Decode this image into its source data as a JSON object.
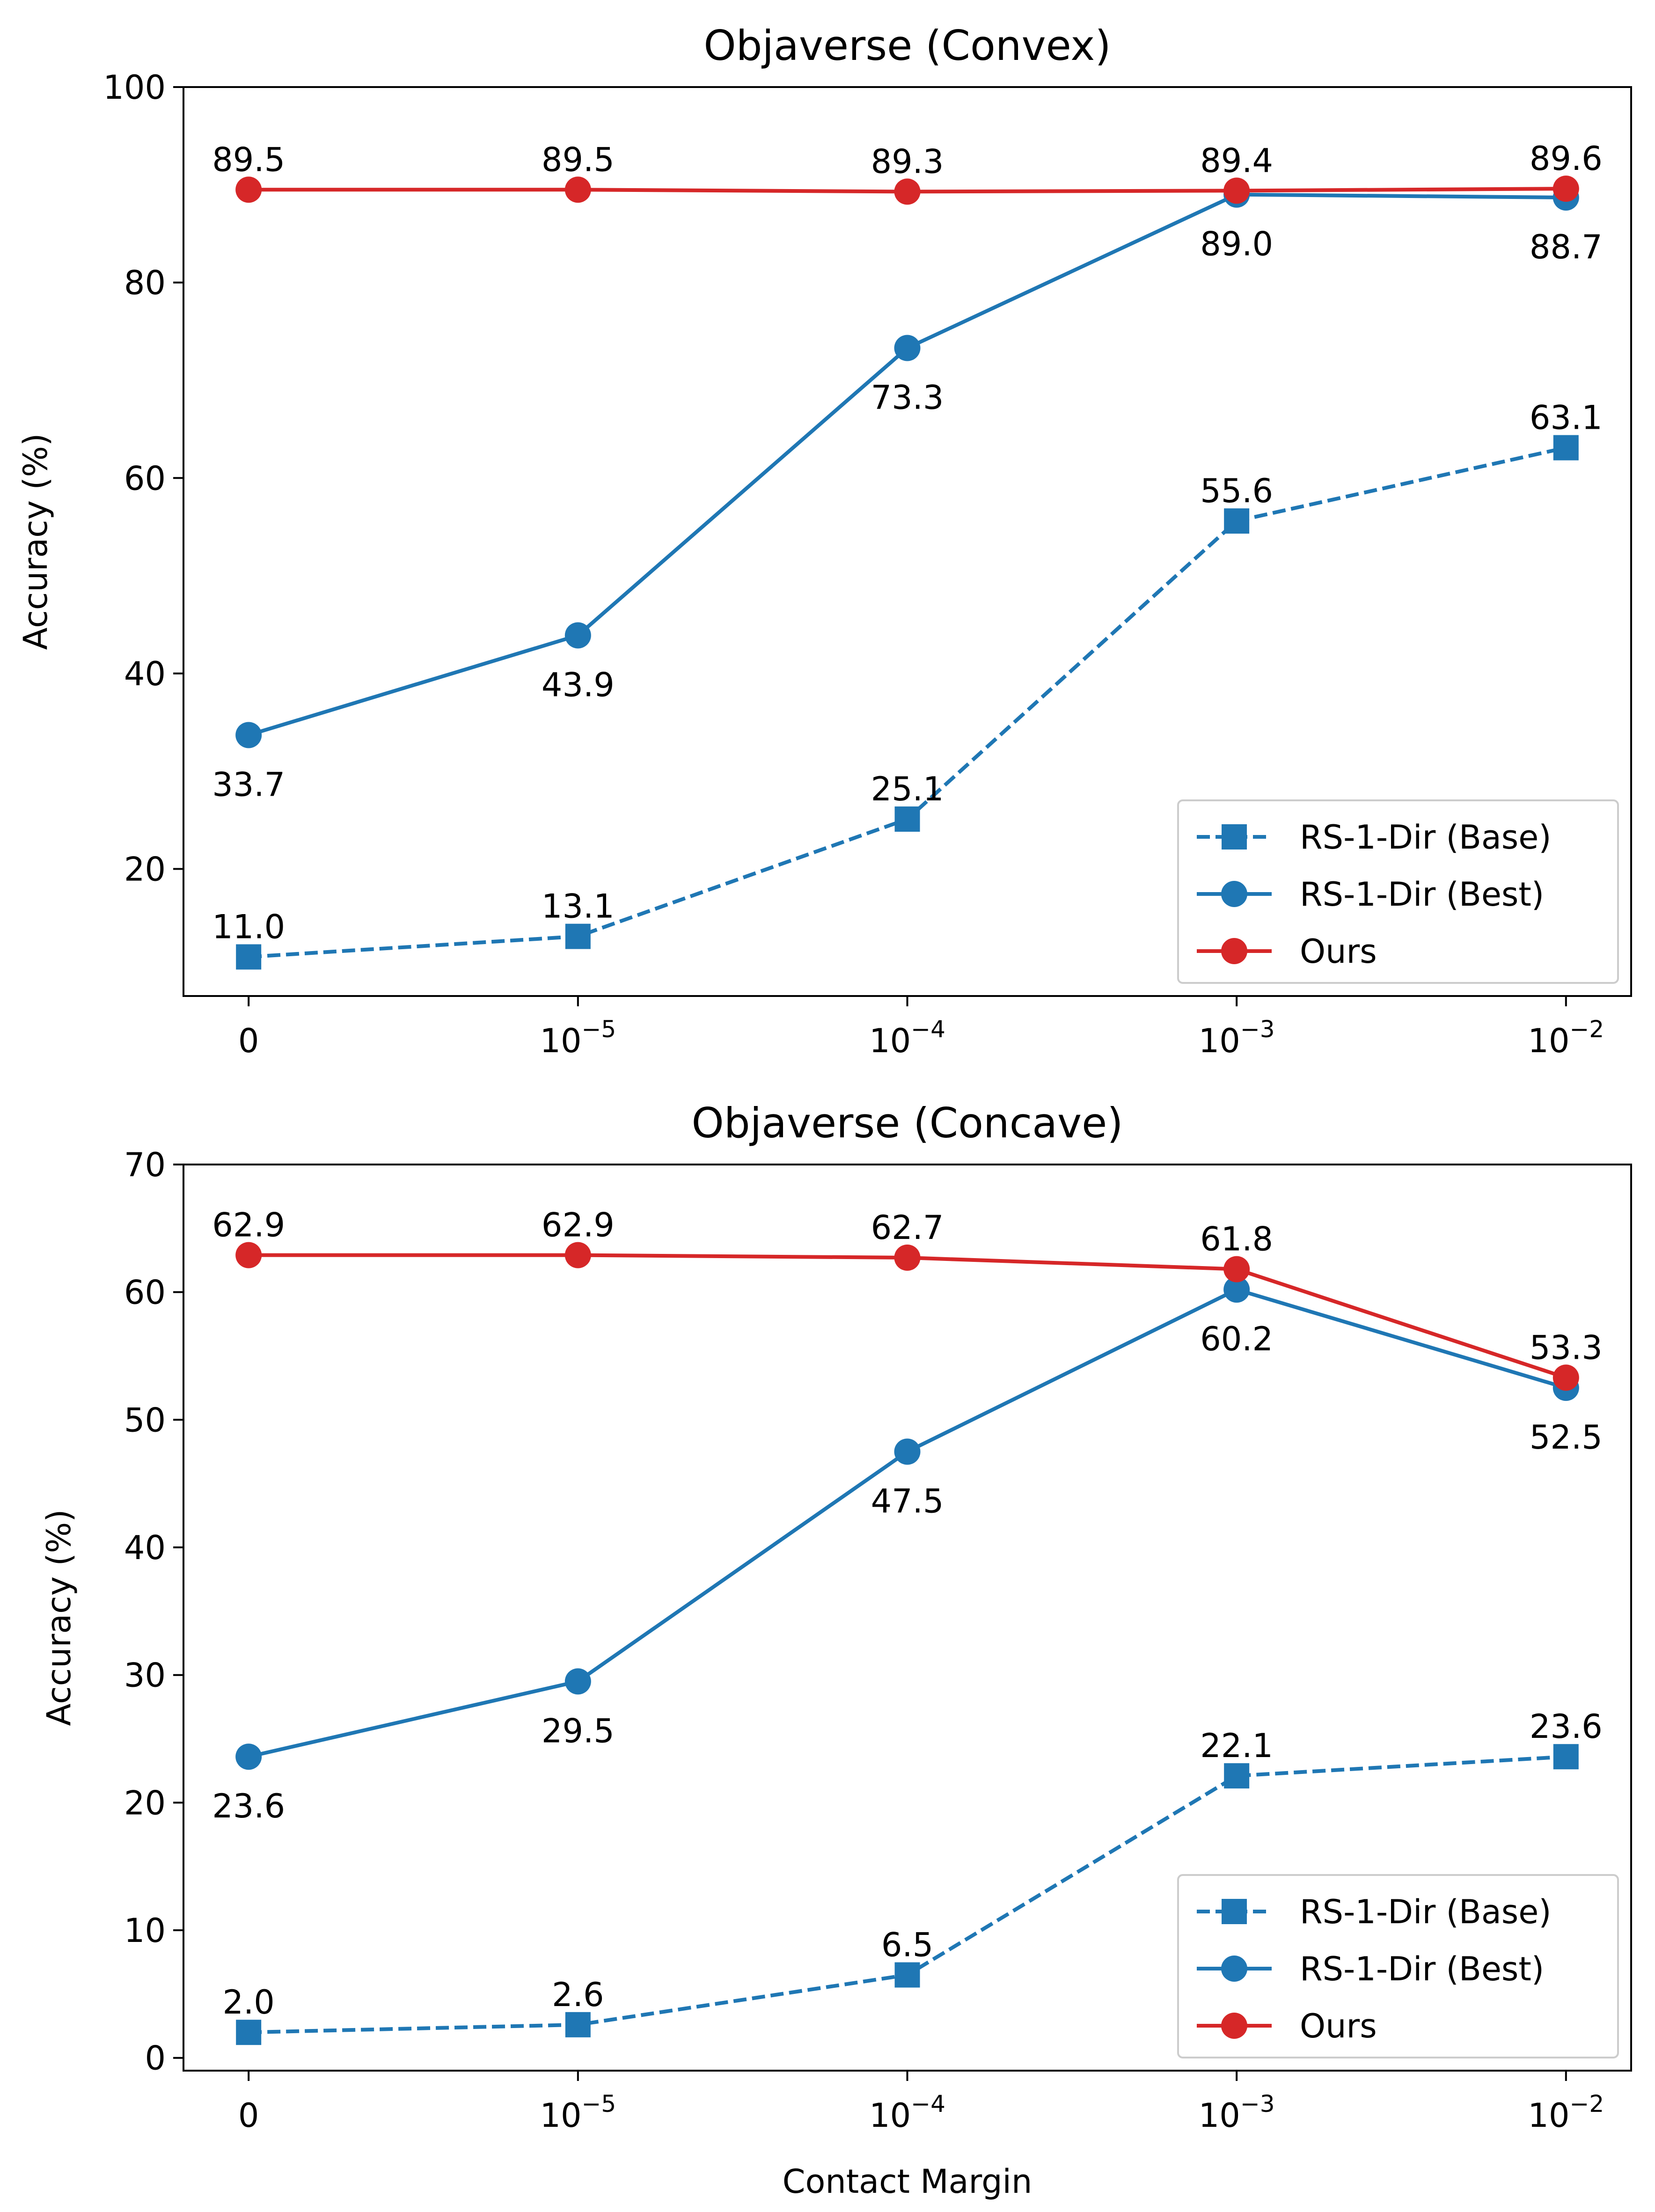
{
  "figure": {
    "xlabel": "Contact Margin",
    "colors": {
      "base": "#1f77b4",
      "best": "#1f77b4",
      "ours": "#d62728"
    },
    "legend_location": "lower-right"
  },
  "chart_data": [
    {
      "type": "line",
      "title": "Objaverse (Convex)",
      "xlabel": "",
      "ylabel": "Accuracy (%)",
      "ylim": [
        7,
        100
      ],
      "yticks": [
        "20",
        "40",
        "60",
        "80",
        "100"
      ],
      "categories": [
        {
          "base": "0",
          "exp": ""
        },
        {
          "base": "10",
          "exp": "−5"
        },
        {
          "base": "10",
          "exp": "−4"
        },
        {
          "base": "10",
          "exp": "−3"
        },
        {
          "base": "10",
          "exp": "−2"
        }
      ],
      "series": [
        {
          "name": "RS-1-Dir (Base)",
          "key": "base",
          "values": [
            11.0,
            13.1,
            25.1,
            55.6,
            63.1
          ],
          "labels": [
            "11.0",
            "13.1",
            "25.1",
            "55.6",
            "63.1"
          ],
          "label_pos": [
            "above",
            "above",
            "above",
            "above",
            "above"
          ]
        },
        {
          "name": "RS-1-Dir (Best)",
          "key": "best",
          "values": [
            33.7,
            43.9,
            73.3,
            89.0,
            88.7
          ],
          "labels": [
            "33.7",
            "43.9",
            "73.3",
            "89.0",
            "88.7"
          ],
          "label_pos": [
            "below",
            "below",
            "below",
            "below",
            "below"
          ]
        },
        {
          "name": "Ours",
          "key": "ours",
          "values": [
            89.5,
            89.5,
            89.3,
            89.4,
            89.6
          ],
          "labels": [
            "89.5",
            "89.5",
            "89.3",
            "89.4",
            "89.6"
          ],
          "label_pos": [
            "above",
            "above",
            "above",
            "above",
            "above"
          ]
        }
      ]
    },
    {
      "type": "line",
      "title": "Objaverse (Concave)",
      "xlabel": "Contact Margin",
      "ylabel": "Accuracy (%)",
      "ylim": [
        -1,
        70
      ],
      "yticks": [
        "0",
        "10",
        "20",
        "30",
        "40",
        "50",
        "60",
        "70"
      ],
      "categories": [
        {
          "base": "0",
          "exp": ""
        },
        {
          "base": "10",
          "exp": "−5"
        },
        {
          "base": "10",
          "exp": "−4"
        },
        {
          "base": "10",
          "exp": "−3"
        },
        {
          "base": "10",
          "exp": "−2"
        }
      ],
      "series": [
        {
          "name": "RS-1-Dir (Base)",
          "key": "base",
          "values": [
            2.0,
            2.6,
            6.5,
            22.1,
            23.6
          ],
          "labels": [
            "2.0",
            "2.6",
            "6.5",
            "22.1",
            "23.6"
          ],
          "label_pos": [
            "above",
            "above",
            "above",
            "above",
            "above"
          ]
        },
        {
          "name": "RS-1-Dir (Best)",
          "key": "best",
          "values": [
            23.6,
            29.5,
            47.5,
            60.2,
            52.5
          ],
          "labels": [
            "23.6",
            "29.5",
            "47.5",
            "60.2",
            "52.5"
          ],
          "label_pos": [
            "below",
            "below",
            "below",
            "below",
            "below"
          ]
        },
        {
          "name": "Ours",
          "key": "ours",
          "values": [
            62.9,
            62.9,
            62.7,
            61.8,
            53.3
          ],
          "labels": [
            "62.9",
            "62.9",
            "62.7",
            "61.8",
            "53.3"
          ],
          "label_pos": [
            "above",
            "above",
            "above",
            "above",
            "above"
          ]
        }
      ]
    }
  ]
}
